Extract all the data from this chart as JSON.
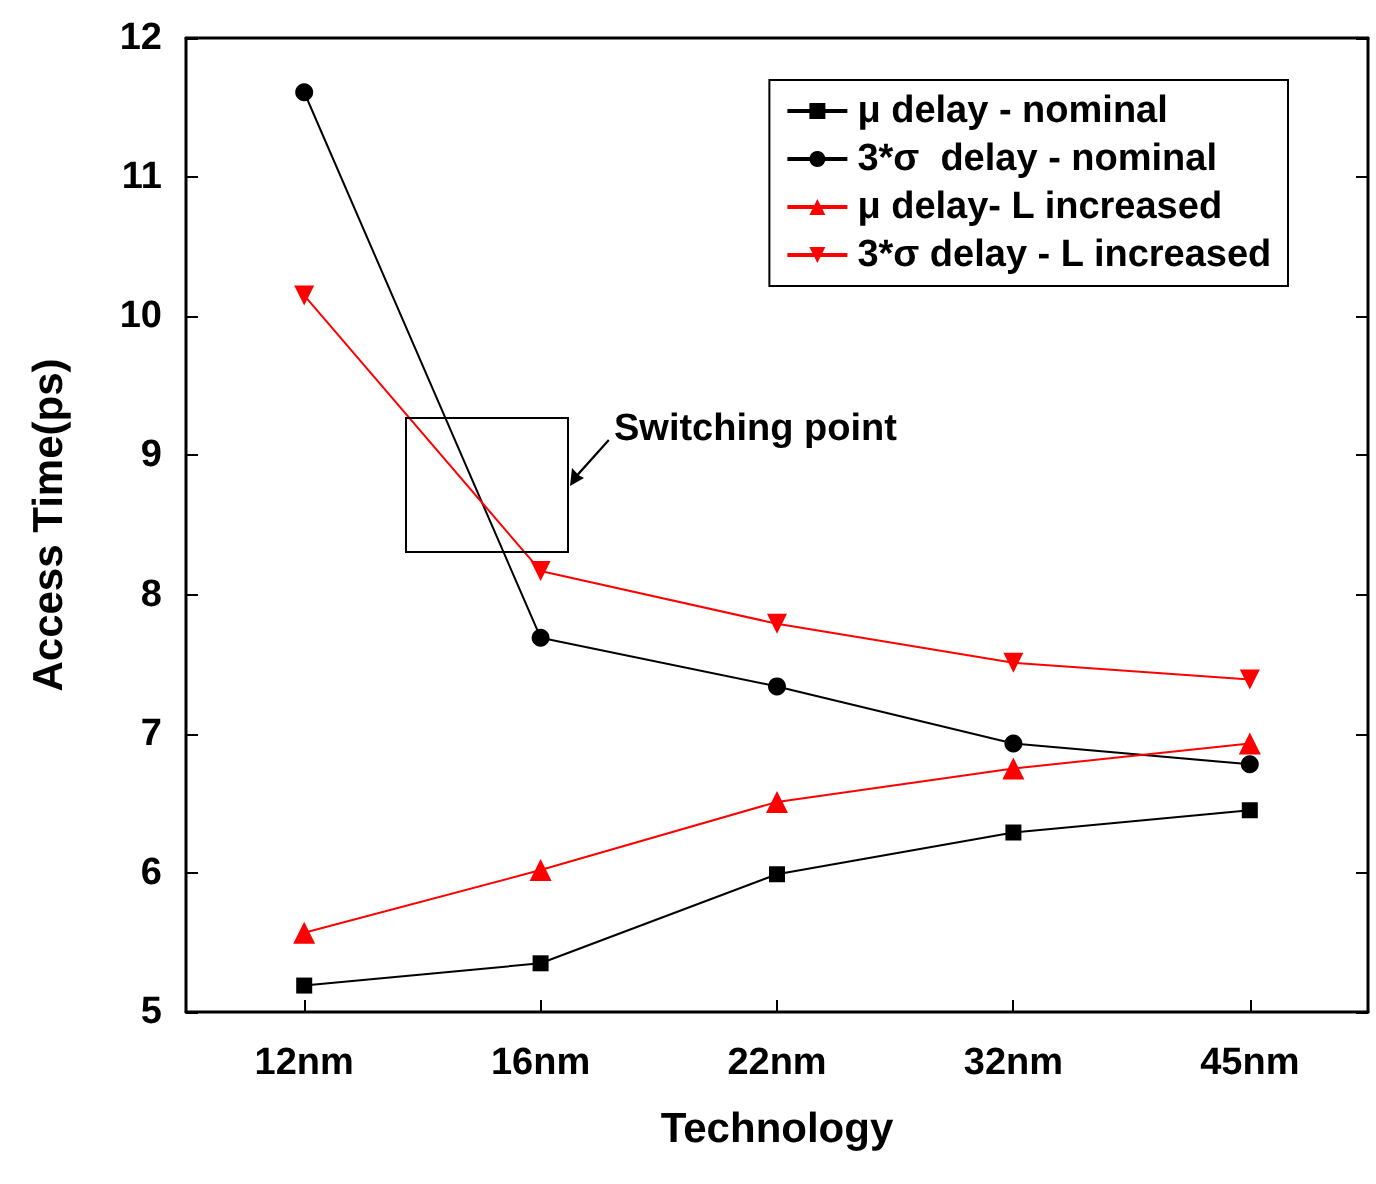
{
  "chart_data": {
    "type": "line",
    "xlabel": "Technology",
    "ylabel": "Access Time(ps)",
    "categories": [
      "12nm",
      "16nm",
      "22nm",
      "32nm",
      "45nm"
    ],
    "ylim": [
      5,
      12
    ],
    "yticks": [
      5,
      6,
      7,
      8,
      9,
      10,
      11,
      12
    ],
    "grid": false,
    "legend": "top right",
    "line_style": "solid",
    "annotations": [
      "Switching point"
    ],
    "series": [
      {
        "name": "μ delay - nominal",
        "color": "#000000",
        "marker": "square",
        "values": [
          5.19,
          5.35,
          5.99,
          6.29,
          6.45
        ]
      },
      {
        "name": "3*σ  delay - nominal",
        "color": "#000000",
        "marker": "circle",
        "values": [
          11.61,
          7.69,
          7.34,
          6.93,
          6.78
        ]
      },
      {
        "name": "μ delay- L increased",
        "color": "#ff0000",
        "marker": "triangle",
        "values": [
          5.57,
          6.02,
          6.51,
          6.75,
          6.93
        ]
      },
      {
        "name": "3*σ delay - L increased",
        "color": "#ff0000",
        "marker": "triangle-down",
        "values": [
          10.15,
          8.17,
          7.79,
          7.51,
          7.39
        ]
      }
    ]
  }
}
